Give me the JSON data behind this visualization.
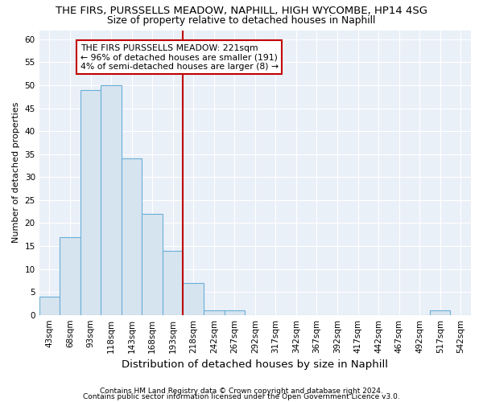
{
  "title": "THE FIRS, PURSSELLS MEADOW, NAPHILL, HIGH WYCOMBE, HP14 4SG",
  "subtitle": "Size of property relative to detached houses in Naphill",
  "xlabel": "Distribution of detached houses by size in Naphill",
  "ylabel": "Number of detached properties",
  "footer1": "Contains HM Land Registry data © Crown copyright and database right 2024.",
  "footer2": "Contains public sector information licensed under the Open Government Licence v3.0.",
  "bar_labels": [
    "43sqm",
    "68sqm",
    "93sqm",
    "118sqm",
    "143sqm",
    "168sqm",
    "193sqm",
    "218sqm",
    "242sqm",
    "267sqm",
    "292sqm",
    "317sqm",
    "342sqm",
    "367sqm",
    "392sqm",
    "417sqm",
    "442sqm",
    "467sqm",
    "492sqm",
    "517sqm",
    "542sqm"
  ],
  "bar_values": [
    4,
    17,
    49,
    50,
    34,
    22,
    14,
    7,
    1,
    1,
    0,
    0,
    0,
    0,
    0,
    0,
    0,
    0,
    0,
    1,
    0
  ],
  "bar_color": "#d6e4f0",
  "bar_edge_color": "#6aaed6",
  "annotation_text": "THE FIRS PURSSELLS MEADOW: 221sqm\n← 96% of detached houses are smaller (191)\n4% of semi-detached houses are larger (8) →",
  "vline_x_index": 7,
  "vline_color": "#c00000",
  "annotation_box_color": "#c00000",
  "ylim": [
    0,
    62
  ],
  "yticks": [
    0,
    5,
    10,
    15,
    20,
    25,
    30,
    35,
    40,
    45,
    50,
    55,
    60
  ],
  "plot_bg_color": "#eaf0f8",
  "background_color": "#ffffff",
  "grid_color": "#ffffff",
  "title_fontsize": 9.5,
  "subtitle_fontsize": 8.8,
  "xlabel_fontsize": 9.5,
  "ylabel_fontsize": 8.0,
  "tick_fontsize": 7.5,
  "annotation_fontsize": 7.8,
  "footer_fontsize": 6.5
}
